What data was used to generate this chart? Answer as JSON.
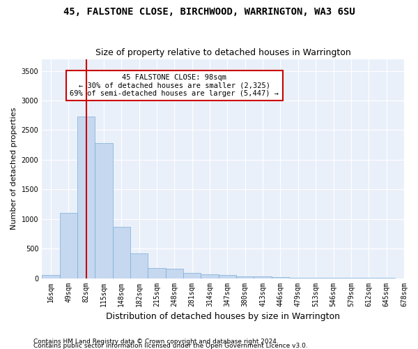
{
  "title": "45, FALSTONE CLOSE, BIRCHWOOD, WARRINGTON, WA3 6SU",
  "subtitle": "Size of property relative to detached houses in Warrington",
  "xlabel": "Distribution of detached houses by size in Warrington",
  "ylabel": "Number of detached properties",
  "bar_color": "#c5d8f0",
  "bar_edge_color": "#7aadd4",
  "bar_values": [
    55,
    1100,
    2730,
    2280,
    870,
    420,
    170,
    160,
    90,
    65,
    55,
    35,
    25,
    15,
    10,
    8,
    5,
    5,
    3,
    2
  ],
  "bin_labels": [
    "16sqm",
    "49sqm",
    "82sqm",
    "115sqm",
    "148sqm",
    "182sqm",
    "215sqm",
    "248sqm",
    "281sqm",
    "314sqm",
    "347sqm",
    "380sqm",
    "413sqm",
    "446sqm",
    "479sqm",
    "513sqm",
    "546sqm",
    "579sqm",
    "612sqm",
    "645sqm",
    "678sqm"
  ],
  "ylim": [
    0,
    3700
  ],
  "yticks": [
    0,
    500,
    1000,
    1500,
    2000,
    2500,
    3000,
    3500
  ],
  "vline_x": 2,
  "vline_color": "#cc0000",
  "annotation_text": "45 FALSTONE CLOSE: 98sqm\n← 30% of detached houses are smaller (2,325)\n69% of semi-detached houses are larger (5,447) →",
  "annotation_box_color": "#ffffff",
  "annotation_box_edge_color": "#cc0000",
  "footnote1": "Contains HM Land Registry data © Crown copyright and database right 2024.",
  "footnote2": "Contains public sector information licensed under the Open Government Licence v3.0.",
  "bg_color": "#eaf0fa",
  "grid_color": "#ffffff",
  "fig_bg_color": "#ffffff",
  "title_fontsize": 10,
  "subtitle_fontsize": 9,
  "xlabel_fontsize": 9,
  "ylabel_fontsize": 8,
  "tick_fontsize": 7,
  "annotation_fontsize": 7.5,
  "footnote_fontsize": 6.5
}
